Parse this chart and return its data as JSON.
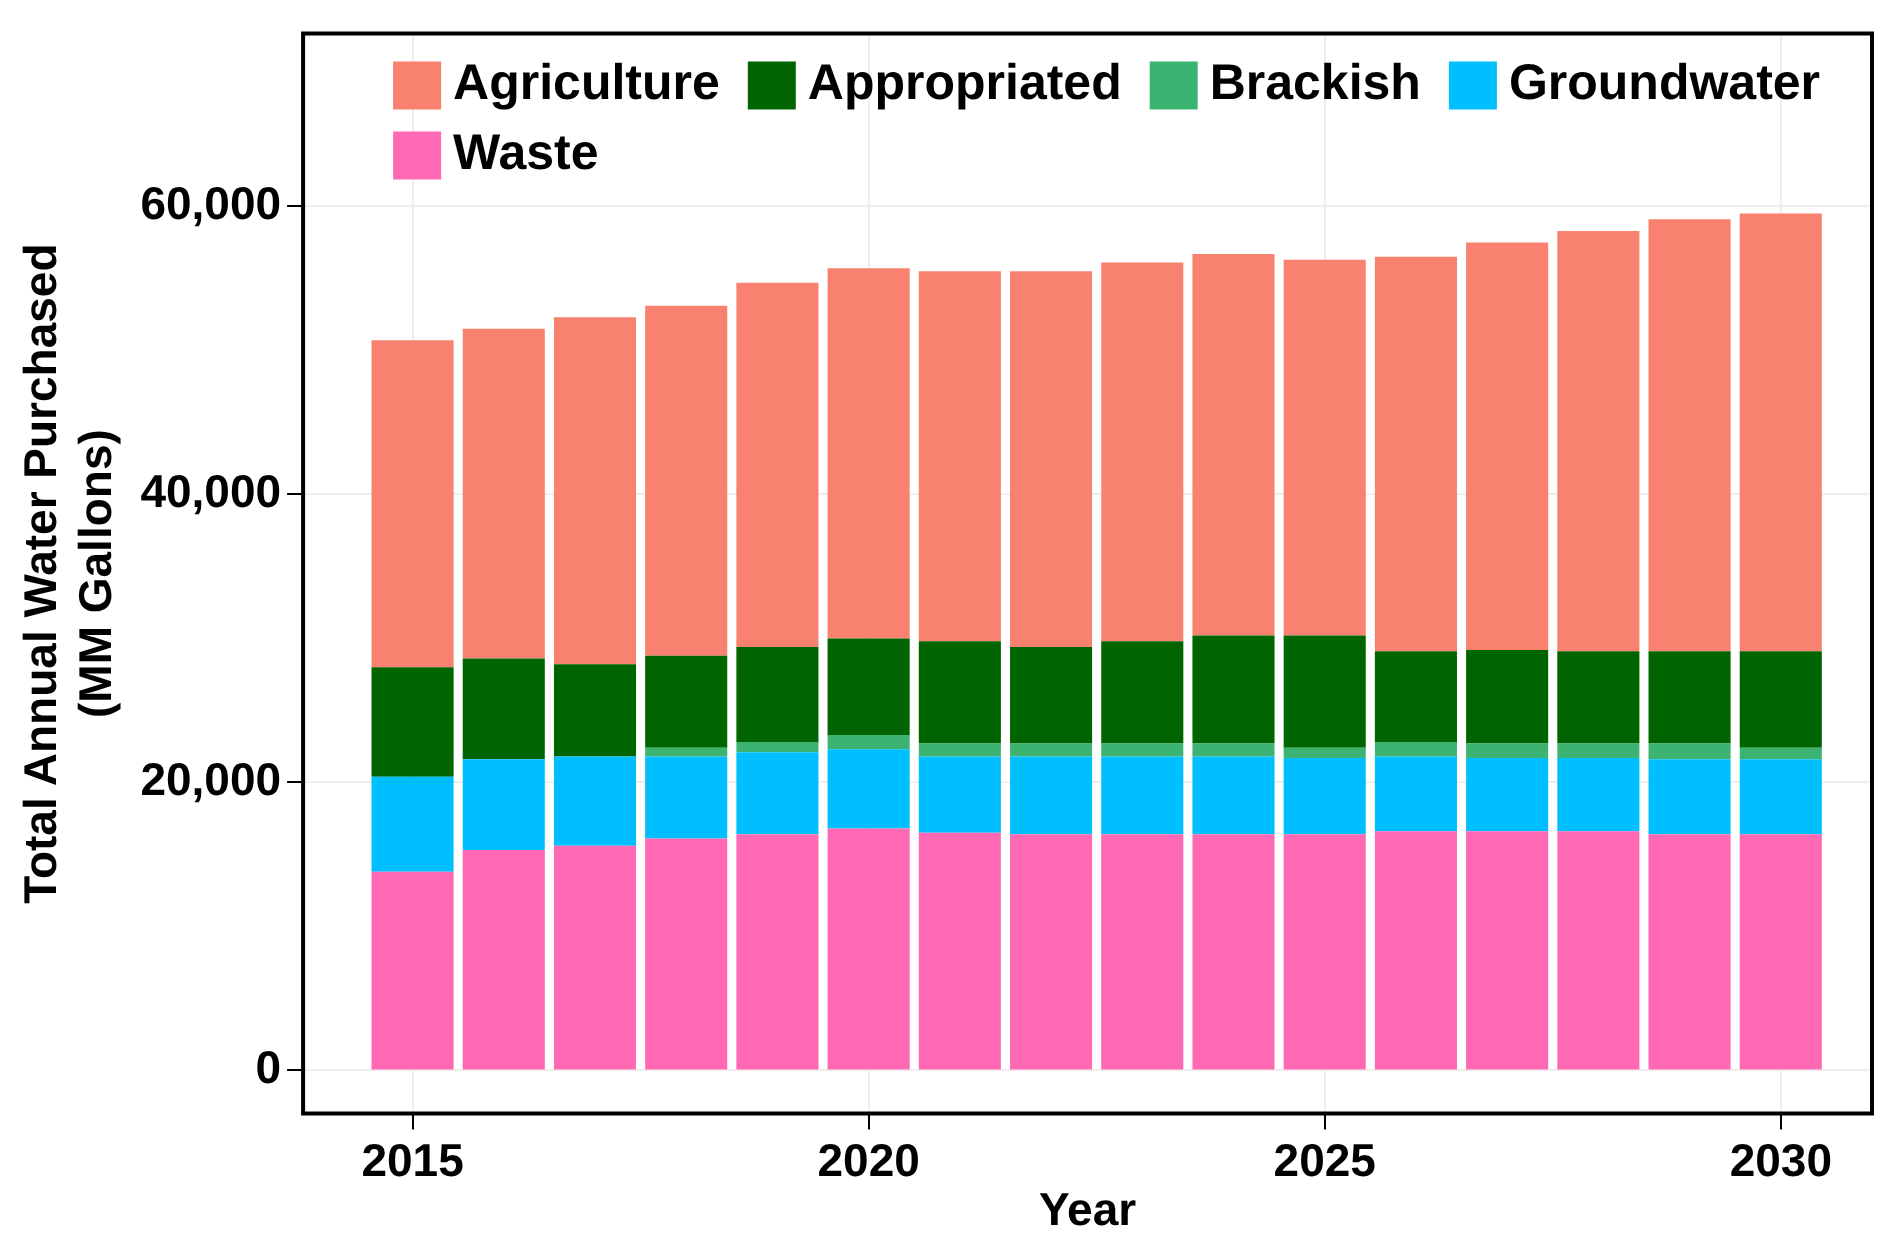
{
  "chart_data": {
    "type": "bar",
    "stacked": true,
    "xlabel": "Year",
    "ylabel": "Total Annual Water Purchased\n(MM Gallons)",
    "x": [
      2015,
      2016,
      2017,
      2018,
      2019,
      2020,
      2021,
      2022,
      2023,
      2024,
      2025,
      2026,
      2027,
      2028,
      2029,
      2030
    ],
    "series": [
      {
        "name": "Waste",
        "color": "#ff69b4",
        "values": [
          13800,
          15300,
          15600,
          16100,
          16400,
          16800,
          16500,
          16400,
          16400,
          16400,
          16400,
          16600,
          16600,
          16600,
          16400,
          16400
        ]
      },
      {
        "name": "Groundwater",
        "color": "#00bfff",
        "values": [
          6600,
          6300,
          6200,
          5700,
          5700,
          5500,
          5300,
          5400,
          5400,
          5400,
          5300,
          5200,
          5100,
          5100,
          5200,
          5200
        ]
      },
      {
        "name": "Brackish",
        "color": "#3cb371",
        "values": [
          0,
          0,
          0,
          600,
          700,
          1000,
          900,
          900,
          900,
          900,
          700,
          1000,
          1000,
          1000,
          1100,
          800
        ]
      },
      {
        "name": "Appropriated",
        "color": "#006400",
        "values": [
          7600,
          7000,
          6400,
          6400,
          6600,
          6700,
          7100,
          6700,
          7100,
          7500,
          7800,
          6300,
          6500,
          6400,
          6400,
          6700
        ]
      },
      {
        "name": "Agriculture",
        "color": "#f8816f",
        "values": [
          22700,
          22900,
          24100,
          24300,
          25300,
          25700,
          25700,
          26100,
          26300,
          26500,
          26100,
          27400,
          28300,
          29200,
          30000,
          30400
        ]
      }
    ],
    "xlim": [
      2013.8,
      2031
    ],
    "xticks": [
      2015,
      2020,
      2025,
      2030
    ],
    "ylim": [
      -3000,
      72000
    ],
    "yticks": [
      {
        "value": 0,
        "label": "0"
      },
      {
        "value": 20000,
        "label": "20,000"
      },
      {
        "value": 40000,
        "label": "40,000"
      },
      {
        "value": 60000,
        "label": "60,000"
      }
    ],
    "grid": true,
    "legend": "top"
  }
}
